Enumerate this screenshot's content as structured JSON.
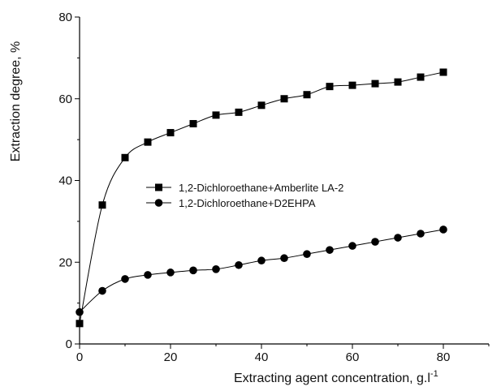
{
  "chart_data": {
    "type": "line",
    "xlabel": "Extracting agent concentration, g.l",
    "xlabel_superscript": "-1",
    "ylabel": "Extraction degree, %",
    "xlim": [
      0,
      90
    ],
    "ylim": [
      0,
      80
    ],
    "xticks": [
      0,
      20,
      40,
      60,
      80
    ],
    "yticks": [
      0,
      20,
      40,
      60,
      80
    ],
    "grid": false,
    "legend_position": "center",
    "series": [
      {
        "name": "1,2-Dichloroethane+Amberlite LA-2",
        "marker": "square",
        "x": [
          0,
          5,
          10,
          15,
          20,
          25,
          30,
          35,
          40,
          45,
          50,
          55,
          60,
          65,
          70,
          75,
          80
        ],
        "y": [
          5,
          34,
          45.6,
          49.4,
          51.7,
          53.9,
          56,
          56.7,
          58.4,
          60,
          61,
          63,
          63.3,
          63.7,
          64.1,
          65.3,
          66.5
        ]
      },
      {
        "name": "1,2-Dichloroethane+D2EHPA",
        "marker": "circle",
        "x": [
          0,
          5,
          10,
          15,
          20,
          25,
          30,
          35,
          40,
          45,
          50,
          55,
          60,
          65,
          70,
          75,
          80
        ],
        "y": [
          7.8,
          13,
          15.9,
          16.9,
          17.5,
          18,
          18.3,
          19.3,
          20.4,
          21,
          22,
          23,
          24,
          25,
          26,
          27,
          28
        ]
      }
    ]
  }
}
